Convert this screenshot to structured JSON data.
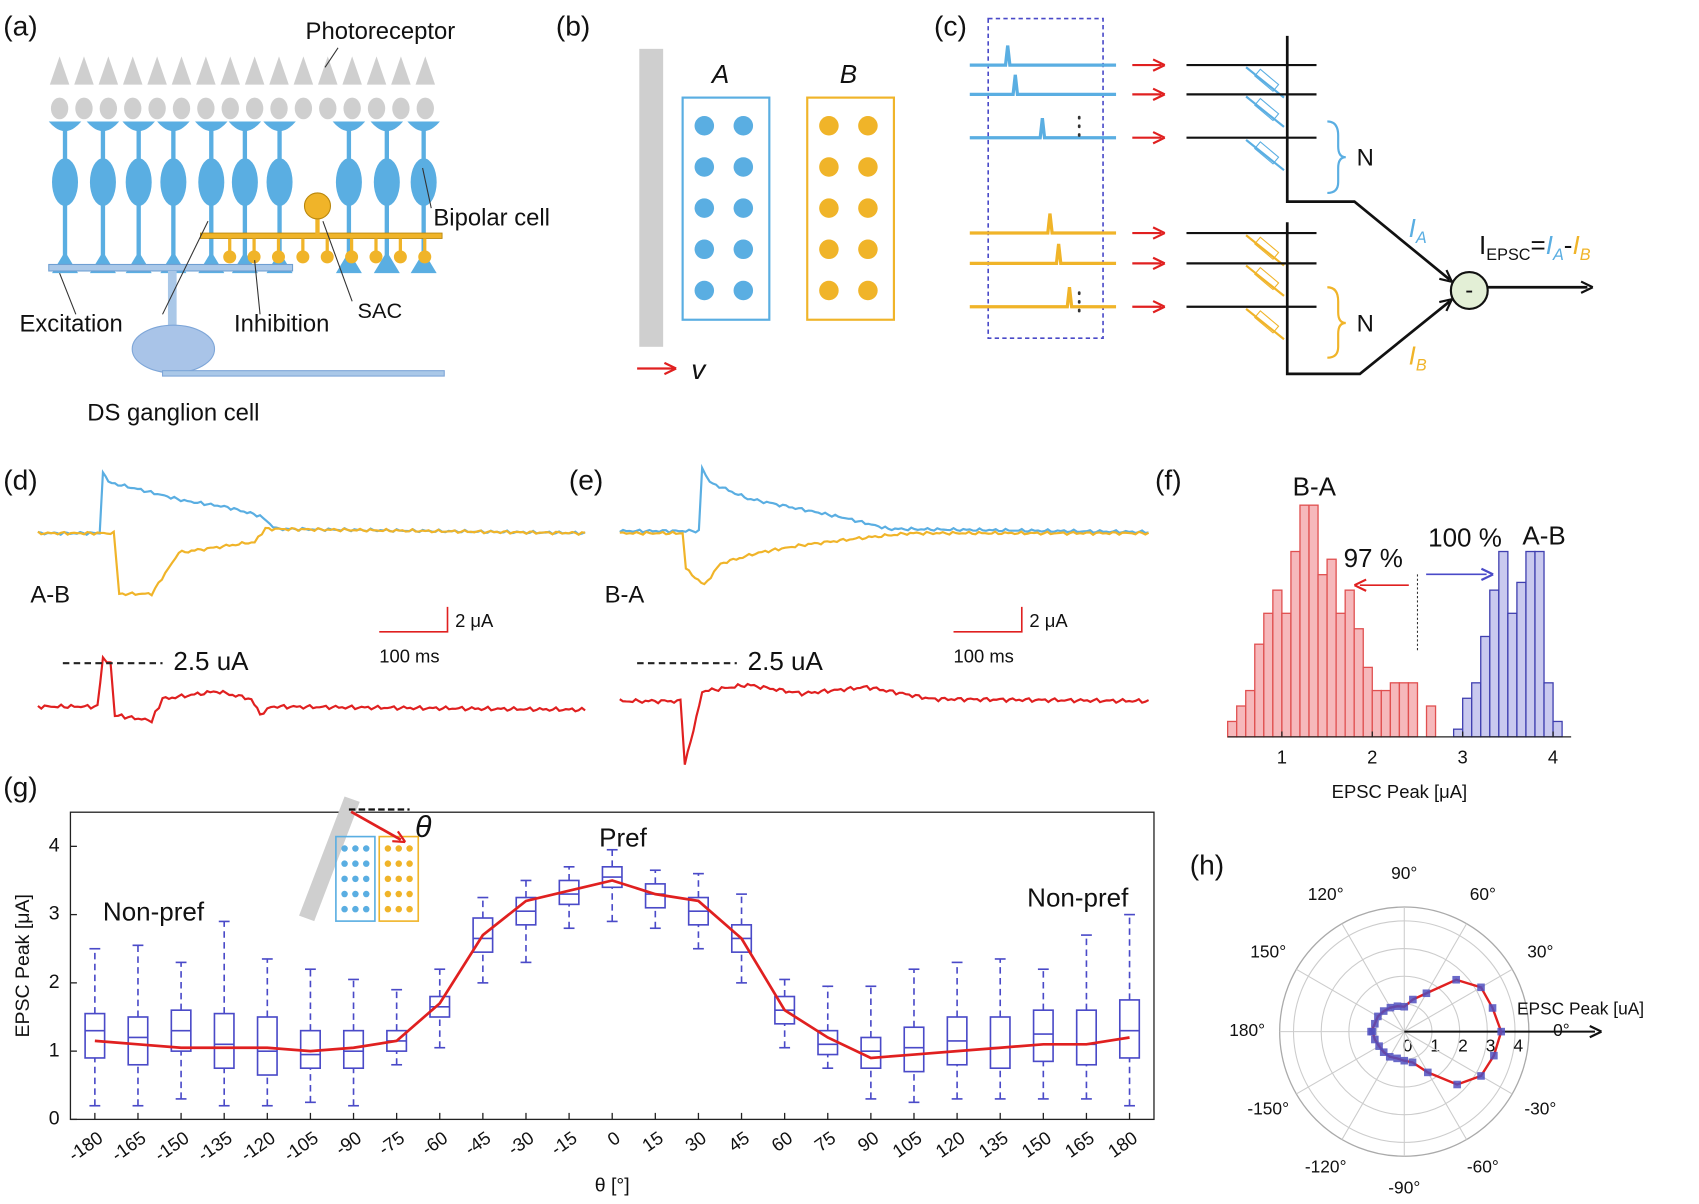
{
  "panels": {
    "a": {
      "label": "(a)",
      "photoreceptor": "Photoreceptor",
      "bipolar": "Bipolar cell",
      "excitation": "Excitation",
      "inhibition": "Inhibition",
      "sac": "SAC",
      "ganglion": "DS ganglion cell"
    },
    "b": {
      "label": "(b)",
      "a": "A",
      "b": "B",
      "v": "v"
    },
    "c": {
      "label": "(c)",
      "n1": "N",
      "n2": "N",
      "ia": [
        "I",
        "A"
      ],
      "ib": [
        "I",
        "B"
      ],
      "iepsc": [
        "I",
        "EPSC",
        "=",
        "I",
        "A",
        "-",
        "I",
        "B"
      ]
    },
    "d": {
      "label": "(d)",
      "trace": "A-B",
      "current_scale": "2 μA",
      "time_scale": "100 ms",
      "threshold": "2.5 uA"
    },
    "e": {
      "label": "(e)",
      "trace": "B-A",
      "current_scale": "2 μA",
      "time_scale": "100 ms",
      "threshold": "2.5 uA"
    }
  },
  "chart_data": [
    {
      "type": "histogram",
      "label": "(f)",
      "xlabel": "EPSC Peak [μA]",
      "xlim": [
        0.4,
        4.2
      ],
      "xticks": [
        1,
        2,
        3,
        4
      ],
      "ylim": [
        0,
        31
      ],
      "divider": 2.5,
      "annotations": {
        "red_pct": "97 %",
        "blue_pct": "100 %"
      },
      "series": [
        {
          "name": "B-A",
          "color": "#e05050",
          "fill": "#f6b8bb",
          "bins": [
            0.4,
            0.5,
            0.6,
            0.7,
            0.8,
            0.9,
            1.0,
            1.1,
            1.2,
            1.3,
            1.4,
            1.5,
            1.6,
            1.7,
            1.8,
            1.9,
            2.0,
            2.1,
            2.2,
            2.3,
            2.4,
            2.5,
            2.6,
            2.7
          ],
          "values": [
            2,
            4,
            6,
            12,
            16,
            19,
            16,
            24,
            30,
            30,
            21,
            23,
            16,
            19,
            14,
            9,
            6,
            6,
            7,
            7,
            7,
            0,
            4
          ]
        },
        {
          "name": "A-B",
          "color": "#4040b0",
          "fill": "#c9c9ef",
          "bins": [
            2.9,
            3.0,
            3.1,
            3.2,
            3.3,
            3.4,
            3.5,
            3.6,
            3.7,
            3.8,
            3.9,
            4.0,
            4.1
          ],
          "values": [
            1,
            5,
            7,
            13,
            19,
            24,
            16,
            20,
            24,
            24,
            7,
            2
          ]
        }
      ]
    },
    {
      "type": "box",
      "label": "(g)",
      "xlabel": "θ [°]",
      "ylabel": "EPSC Peak [μA]",
      "inset_symbol": "θ",
      "annotations": [
        "Non-pref",
        "Pref",
        "Non-pref"
      ],
      "x": [
        -180,
        -165,
        -150,
        -135,
        -120,
        -105,
        -90,
        -75,
        -60,
        -45,
        -30,
        -15,
        0,
        15,
        30,
        45,
        60,
        75,
        90,
        105,
        120,
        135,
        150,
        165,
        180
      ],
      "xticks": [
        -180,
        -165,
        -150,
        -135,
        -120,
        -105,
        -90,
        -75,
        -60,
        -45,
        -30,
        -15,
        0,
        15,
        30,
        45,
        60,
        75,
        90,
        105,
        120,
        135,
        150,
        165,
        180
      ],
      "xlim": [
        -188.5,
        188.5
      ],
      "ylim": [
        0,
        4.5
      ],
      "yticks": [
        0,
        1,
        2,
        3,
        4
      ],
      "box_color": "#4a4ac8",
      "mean_color": "#e02020",
      "whisker_low": [
        0.2,
        0.2,
        0.3,
        0.2,
        0.2,
        0.25,
        0.2,
        0.8,
        1.05,
        2.0,
        2.3,
        2.8,
        2.9,
        2.8,
        2.5,
        2.0,
        1.05,
        0.75,
        0.3,
        0.25,
        0.3,
        0.3,
        0.3,
        0.3,
        0.2
      ],
      "q1": [
        0.9,
        0.8,
        1.0,
        0.75,
        0.65,
        0.75,
        0.75,
        1.0,
        1.5,
        2.45,
        2.85,
        3.15,
        3.4,
        3.1,
        2.85,
        2.45,
        1.4,
        0.95,
        0.75,
        0.7,
        0.8,
        0.75,
        0.85,
        0.8,
        0.9
      ],
      "median": [
        1.3,
        1.2,
        1.3,
        1.1,
        1.0,
        0.95,
        1.0,
        1.15,
        1.65,
        2.65,
        3.05,
        3.3,
        3.55,
        3.3,
        3.05,
        2.65,
        1.6,
        1.1,
        1.0,
        1.05,
        1.15,
        1.05,
        1.25,
        1.1,
        1.3
      ],
      "q3": [
        1.55,
        1.5,
        1.6,
        1.55,
        1.5,
        1.3,
        1.3,
        1.3,
        1.8,
        2.95,
        3.25,
        3.5,
        3.7,
        3.45,
        3.25,
        2.85,
        1.8,
        1.3,
        1.2,
        1.35,
        1.5,
        1.5,
        1.6,
        1.6,
        1.75
      ],
      "whisker_high": [
        2.5,
        2.55,
        2.3,
        2.9,
        2.35,
        2.2,
        2.05,
        1.9,
        2.2,
        3.25,
        3.5,
        3.7,
        3.95,
        3.65,
        3.6,
        3.3,
        2.05,
        1.95,
        1.95,
        2.2,
        2.3,
        2.35,
        2.2,
        2.7,
        3.0
      ],
      "mean": [
        1.15,
        1.1,
        1.05,
        1.05,
        1.05,
        1.0,
        1.05,
        1.15,
        1.7,
        2.7,
        3.2,
        3.35,
        3.5,
        3.3,
        3.2,
        2.65,
        1.6,
        1.2,
        0.9,
        0.95,
        1.0,
        1.05,
        1.1,
        1.1,
        1.2
      ]
    },
    {
      "type": "polar",
      "label": "(h)",
      "axis_label": "EPSC Peak [uA]",
      "color": "#e02020",
      "marker_color": "#5050c0",
      "theta": [
        -180,
        -165,
        -150,
        -135,
        -120,
        -105,
        -90,
        -75,
        -60,
        -45,
        -30,
        -15,
        0,
        15,
        30,
        45,
        60,
        75,
        90,
        105,
        120,
        135,
        150,
        165,
        180
      ],
      "r": [
        1.15,
        1.1,
        1.05,
        1.05,
        1.05,
        1.0,
        1.05,
        1.15,
        1.7,
        2.7,
        3.2,
        3.35,
        3.5,
        3.3,
        3.2,
        2.65,
        1.6,
        1.2,
        0.9,
        0.95,
        1.0,
        1.05,
        1.1,
        1.1,
        1.2
      ],
      "rlim": [
        0,
        4.5
      ],
      "rticks": [
        0,
        1,
        2,
        3,
        4
      ],
      "thetaticks": [
        {
          "value": 90,
          "label": "90°"
        },
        {
          "value": 60,
          "label": "60°"
        },
        {
          "value": 30,
          "label": "30°"
        },
        {
          "value": 0,
          "label": "0°"
        },
        {
          "value": -30,
          "label": "-30°"
        },
        {
          "value": -60,
          "label": "-60°"
        },
        {
          "value": -90,
          "label": "-90°"
        },
        {
          "value": -120,
          "label": "-120°"
        },
        {
          "value": -150,
          "label": "-150°"
        },
        {
          "value": 180,
          "label": "180°"
        },
        {
          "value": 150,
          "label": "150°"
        },
        {
          "value": 120,
          "label": "120°"
        }
      ]
    }
  ]
}
